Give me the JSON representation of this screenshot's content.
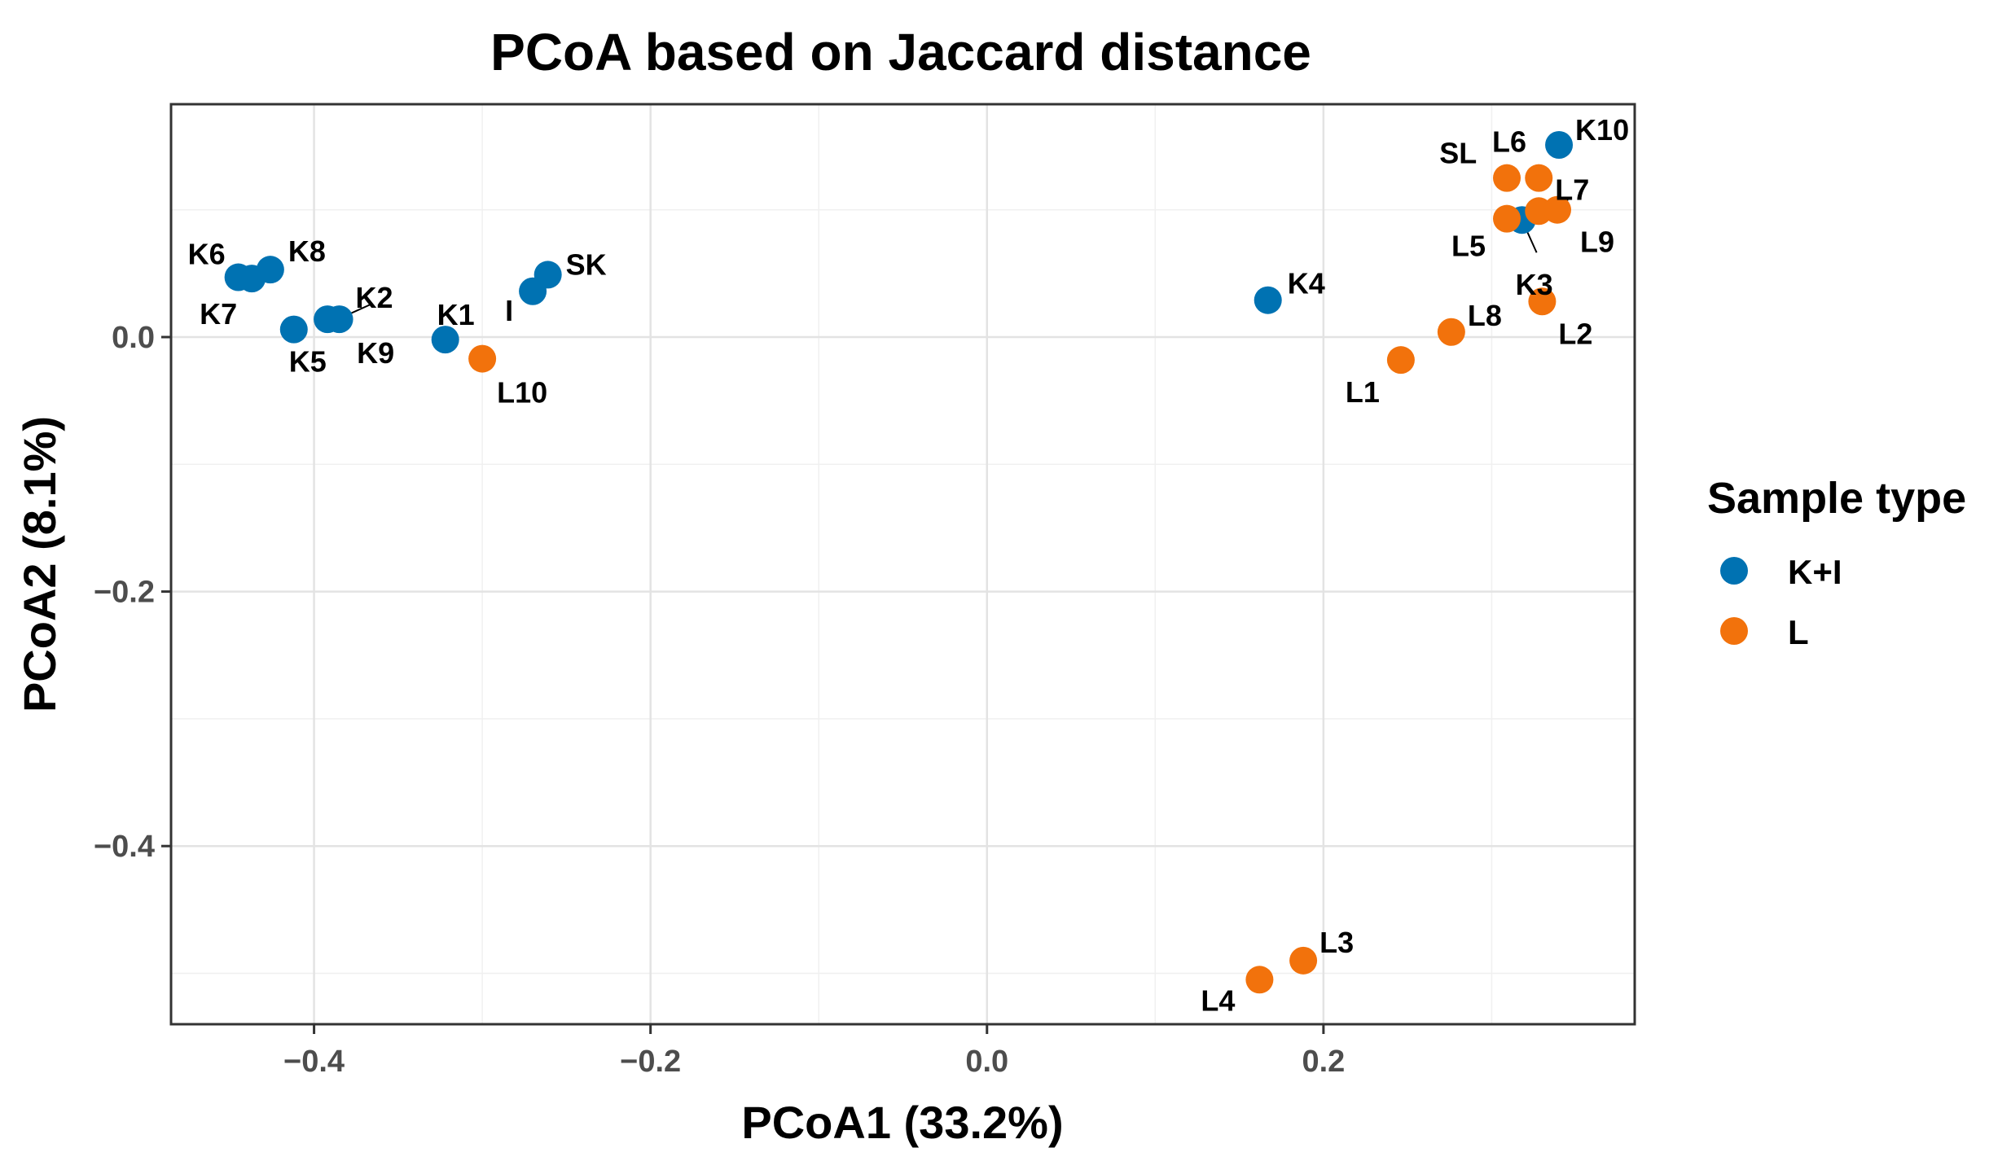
{
  "chart_data": {
    "type": "scatter",
    "title": "PCoA based on Jaccard distance",
    "xlabel": "PCoA1 (33.2%)",
    "ylabel": "PCoA2 (8.1%)",
    "xlim": [
      -0.485,
      0.385
    ],
    "ylim": [
      -0.54,
      0.183
    ],
    "x_ticks": [
      -0.4,
      -0.2,
      0.0,
      0.2
    ],
    "x_tick_labels": [
      "−0.4",
      "−0.2",
      "0.0",
      "0.2"
    ],
    "y_ticks": [
      -0.4,
      -0.2,
      0.0
    ],
    "y_tick_labels": [
      "−0.4",
      "−0.2",
      "0.0"
    ],
    "grid": true,
    "legend": {
      "title": "Sample type",
      "placement": "right"
    },
    "series": [
      {
        "name": "K+I",
        "color": "#0072B2",
        "points": [
          {
            "label": "K1",
            "x": -0.322,
            "y": -0.002
          },
          {
            "label": "K2",
            "x": -0.385,
            "y": 0.014
          },
          {
            "label": "K3",
            "x": 0.318,
            "y": 0.092
          },
          {
            "label": "K4",
            "x": 0.167,
            "y": 0.029
          },
          {
            "label": "K5",
            "x": -0.412,
            "y": 0.006
          },
          {
            "label": "K6",
            "x": -0.445,
            "y": 0.047
          },
          {
            "label": "K7",
            "x": -0.437,
            "y": 0.046
          },
          {
            "label": "K8",
            "x": -0.426,
            "y": 0.053
          },
          {
            "label": "K9",
            "x": -0.392,
            "y": 0.014
          },
          {
            "label": "K10",
            "x": 0.34,
            "y": 0.151
          },
          {
            "label": "I",
            "x": -0.27,
            "y": 0.036
          },
          {
            "label": "SK",
            "x": -0.261,
            "y": 0.049
          }
        ]
      },
      {
        "name": "L",
        "color": "#F2720C",
        "points": [
          {
            "label": "L1",
            "x": 0.246,
            "y": -0.018
          },
          {
            "label": "L2",
            "x": 0.33,
            "y": 0.028
          },
          {
            "label": "L3",
            "x": 0.188,
            "y": -0.49
          },
          {
            "label": "L4",
            "x": 0.162,
            "y": -0.505
          },
          {
            "label": "L5",
            "x": 0.309,
            "y": 0.093
          },
          {
            "label": "L6",
            "x": 0.309,
            "y": 0.125
          },
          {
            "label": "L7",
            "x": 0.328,
            "y": 0.099
          },
          {
            "label": "L8",
            "x": 0.276,
            "y": 0.004
          },
          {
            "label": "L9",
            "x": 0.339,
            "y": 0.1
          },
          {
            "label": "L10",
            "x": -0.3,
            "y": -0.017
          },
          {
            "label": "SL",
            "x": 0.328,
            "y": 0.125
          }
        ]
      }
    ]
  }
}
